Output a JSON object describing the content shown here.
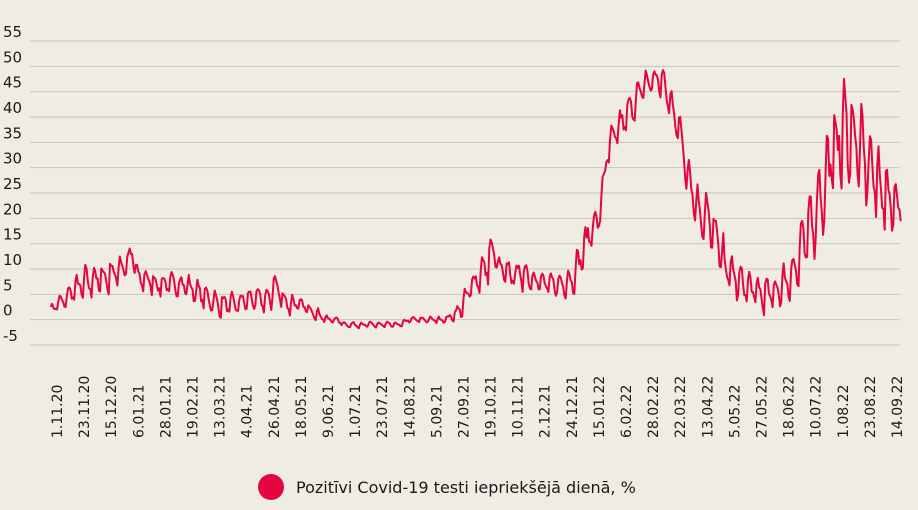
{
  "chart_data": {
    "type": "line",
    "title": "",
    "xlabel": "",
    "ylabel": "",
    "ylim": [
      -5,
      55
    ],
    "yticks": [
      -5,
      0,
      5,
      10,
      15,
      20,
      25,
      30,
      35,
      40,
      45,
      50,
      55
    ],
    "grid": true,
    "color": "#e4063e",
    "x_tick_labels": [
      "1.11.20",
      "23.11.20",
      "15.12.20",
      "6.01.21",
      "28.01.21",
      "19.02.21",
      "13.03.21",
      "4.04.21",
      "26.04.21",
      "18.05.21",
      "9.06.21",
      "1.07.21",
      "23.07.21",
      "14.08.21",
      "5.09.21",
      "27.09.21",
      "19.10.21",
      "10.11.21",
      "2.12.21",
      "24.12.21",
      "15.01.22",
      "6.02.22",
      "28.02.22",
      "22.03.22",
      "13.04.22",
      "5.05.22",
      "27.05.22",
      "18.06.22",
      "10.07.22",
      "1.08.22",
      "23.08.22",
      "14.09.22"
    ],
    "legend": {
      "label": "Pozitīvi Covid-19 testi iepriekšējā dienā, %",
      "position": "bottom"
    },
    "series": [
      {
        "name": "Pozitīvi Covid-19 testi iepriekšējā dienā, %",
        "x": [
          "27.10.20",
          "1.11.20",
          "8.11.20",
          "15.11.20",
          "23.11.20",
          "1.12.20",
          "8.12.20",
          "15.12.20",
          "22.12.20",
          "27.12.20",
          "1.01.21",
          "6.01.21",
          "13.01.21",
          "20.01.21",
          "28.01.21",
          "4.02.21",
          "12.02.21",
          "19.02.21",
          "26.02.21",
          "5.03.21",
          "13.03.21",
          "20.03.21",
          "27.03.21",
          "4.04.21",
          "11.04.21",
          "18.04.21",
          "24.04.21",
          "26.04.21",
          "3.05.21",
          "10.05.21",
          "18.05.21",
          "25.05.21",
          "1.06.21",
          "9.06.21",
          "16.06.21",
          "23.06.21",
          "1.07.21",
          "8.07.21",
          "15.07.21",
          "23.07.21",
          "30.07.21",
          "7.08.21",
          "14.08.21",
          "21.08.21",
          "28.08.21",
          "5.09.21",
          "12.09.21",
          "20.09.21",
          "27.09.21",
          "4.10.21",
          "11.10.21",
          "17.10.21",
          "19.10.21",
          "26.10.21",
          "2.11.21",
          "10.11.21",
          "17.11.21",
          "24.11.21",
          "2.12.21",
          "9.12.21",
          "16.12.21",
          "24.12.21",
          "31.12.21",
          "7.01.22",
          "15.01.22",
          "22.01.22",
          "29.01.22",
          "6.02.22",
          "13.02.22",
          "20.02.22",
          "26.02.22",
          "28.02.22",
          "7.03.22",
          "14.03.22",
          "22.03.22",
          "29.03.22",
          "5.04.22",
          "13.04.22",
          "20.04.22",
          "27.04.22",
          "5.05.22",
          "12.05.22",
          "19.05.22",
          "27.05.22",
          "3.06.22",
          "10.06.22",
          "18.06.22",
          "25.06.22",
          "2.07.22",
          "10.07.22",
          "17.07.22",
          "24.07.22",
          "1.08.22",
          "8.08.22",
          "15.08.22",
          "23.08.22",
          "30.08.22",
          "6.09.22",
          "14.09.22",
          "17.09.22"
        ],
        "y": [
          2,
          3,
          4,
          6,
          7,
          8,
          8,
          9,
          10,
          11,
          13,
          8,
          8,
          7,
          7,
          7,
          7,
          6,
          5,
          4,
          3,
          3,
          3,
          4,
          4,
          4,
          4,
          8,
          4,
          3,
          3,
          2,
          1,
          0,
          0,
          -1,
          -1,
          -1,
          -1,
          -1,
          -1,
          -1,
          0,
          0,
          0,
          0,
          0,
          1,
          3,
          7,
          9,
          11,
          15,
          10,
          9,
          9,
          9,
          8,
          7,
          7,
          7,
          8,
          12,
          17,
          20,
          33,
          37,
          40,
          43,
          46,
          47,
          48,
          47,
          43,
          37,
          28,
          22,
          20,
          16,
          11,
          8,
          7,
          6,
          5,
          5,
          6,
          8,
          11,
          16,
          22,
          26,
          33,
          37,
          37,
          33,
          30,
          27,
          24,
          23,
          22
        ],
        "amplitude": [
          1,
          1,
          2,
          2,
          3,
          3,
          3,
          3,
          3,
          2,
          2,
          2,
          2,
          2,
          2,
          2,
          2,
          2,
          2,
          2,
          2,
          2,
          2,
          2,
          2,
          2,
          2,
          1,
          2,
          2,
          1,
          1,
          1,
          0.5,
          0.5,
          0.5,
          0.5,
          0.5,
          0.5,
          0.5,
          0.5,
          0.5,
          0.5,
          0.5,
          0.5,
          0.5,
          0.5,
          1,
          2,
          2,
          3,
          3,
          1,
          2,
          3,
          3,
          3,
          2,
          2,
          2,
          2,
          3,
          3,
          3,
          3,
          3,
          3,
          3,
          3,
          3,
          3,
          1,
          3,
          3,
          3,
          4,
          4,
          5,
          5,
          4,
          4,
          3,
          3,
          3,
          3,
          3,
          4,
          5,
          7,
          8,
          8,
          9,
          9,
          9,
          8,
          8,
          7,
          6,
          4,
          3
        ]
      }
    ]
  }
}
